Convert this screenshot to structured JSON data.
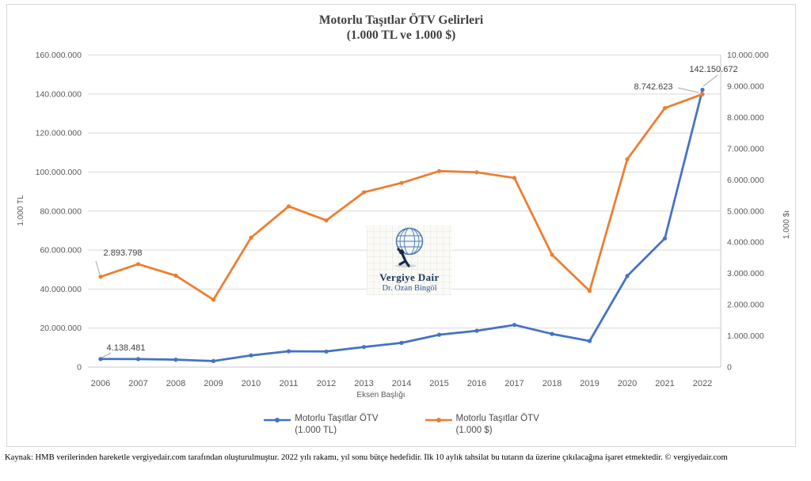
{
  "chart": {
    "title_line1": "Motorlu Taşıtlar ÖTV Gelirleri",
    "title_line2": "(1.000 TL ve 1.000 $)",
    "left_axis": {
      "title": "1.000 TL",
      "ticks": [
        "0",
        "20.000.000",
        "40.000.000",
        "60.000.000",
        "80.000.000",
        "100.000.000",
        "120.000.000",
        "140.000.000",
        "160.000.000"
      ]
    },
    "right_axis": {
      "title": "1.000 $ı",
      "ticks": [
        "0",
        "1.000.000",
        "2.000.000",
        "3.000.000",
        "4.000.000",
        "5.000.000",
        "6.000.000",
        "7.000.000",
        "8.000.000",
        "9.000.000",
        "10.000.000"
      ]
    },
    "x_axis": {
      "title": "Eksen Başlığı",
      "labels": [
        "2006",
        "2007",
        "2008",
        "2009",
        "2010",
        "2011",
        "2012",
        "2013",
        "2014",
        "2015",
        "2016",
        "2017",
        "2018",
        "2019",
        "2020",
        "2021",
        "2022"
      ]
    },
    "legend": [
      {
        "line1": "Motorlu Taşıtlar ÖTV",
        "line2": "(1.000 TL)",
        "color": "#4472c4"
      },
      {
        "line1": "Motorlu Taşıtlar ÖTV",
        "line2": "(1.000 $)",
        "color": "#ed7d31"
      }
    ],
    "watermark": {
      "line1": "Vergiye Dair",
      "line2": "Dr. Ozan Bingöl"
    },
    "colors": {
      "series_tl": "#4472c4",
      "series_usd": "#ed7d31",
      "gridline": "#d9d9d9",
      "axis_line": "#c9c9c9",
      "axis_text": "#595959",
      "label_text": "#404040",
      "leader_line": "#a6a6a6"
    }
  },
  "chart_data": {
    "type": "line",
    "title": "Motorlu Taşıtlar ÖTV Gelirleri (1.000 TL ve 1.000 $)",
    "categories": [
      "2006",
      "2007",
      "2008",
      "2009",
      "2010",
      "2011",
      "2012",
      "2013",
      "2014",
      "2015",
      "2016",
      "2017",
      "2018",
      "2019",
      "2020",
      "2021",
      "2022"
    ],
    "series": [
      {
        "name": "Motorlu Taşıtlar ÖTV (1.000 TL)",
        "axis": "left",
        "color": "#4472c4",
        "values": [
          4138481,
          4100000,
          3800000,
          3100000,
          6000000,
          8100000,
          8000000,
          10300000,
          12400000,
          16600000,
          18600000,
          21600000,
          17000000,
          13400000,
          46700000,
          66000000,
          142150672
        ]
      },
      {
        "name": "Motorlu Taşıtlar ÖTV (1.000 $)",
        "axis": "right",
        "color": "#ed7d31",
        "values": [
          2893798,
          3300000,
          2930000,
          2160000,
          4150000,
          5150000,
          4700000,
          5600000,
          5900000,
          6280000,
          6240000,
          6060000,
          3600000,
          2440000,
          6660000,
          8300000,
          8742623
        ]
      }
    ],
    "left_ylim": [
      0,
      160000000
    ],
    "right_ylim": [
      0,
      10000000
    ],
    "xlabel": "Eksen Başlığı",
    "ylabel_left": "1.000 TL",
    "ylabel_right": "1.000 $ı",
    "grid": true,
    "legend_position": "bottom",
    "point_labels": [
      {
        "series": 0,
        "index": 0,
        "text": "4.138.481"
      },
      {
        "series": 1,
        "index": 0,
        "text": "2.893.798"
      },
      {
        "series": 1,
        "index": 16,
        "text": "8.742.623"
      },
      {
        "series": 0,
        "index": 16,
        "text": "142.150.672"
      }
    ]
  },
  "footer": {
    "text": "Kaynak: HMB verilerinden hareketle vergiyedair.com tarafından oluşturulmuştur. 2022 yılı rakamı, yıl sonu bütçe hedefidir. İlk 10 aylık tahsilat bu tutarın da üzerine çıkılacağına işaret etmektedir. © vergiyedair.com"
  }
}
